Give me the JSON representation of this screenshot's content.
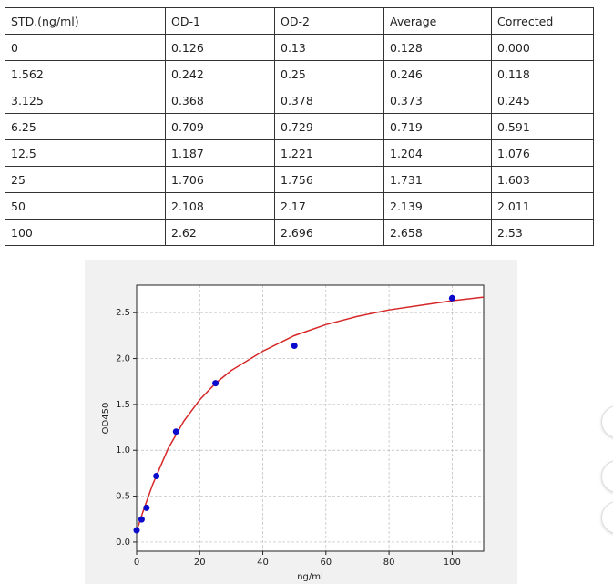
{
  "table": {
    "rows": [
      [
        "STD.(ng/ml)",
        "OD-1",
        "OD-2",
        "Average",
        "Corrected"
      ],
      [
        "0",
        "0.126",
        "0.13",
        "0.128",
        "0.000"
      ],
      [
        "1.562",
        "0.242",
        "0.25",
        "0.246",
        "0.118"
      ],
      [
        "3.125",
        "0.368",
        "0.378",
        "0.373",
        "0.245"
      ],
      [
        "6.25",
        "0.709",
        "0.729",
        "0.719",
        "0.591"
      ],
      [
        "12.5",
        "1.187",
        "1.221",
        "1.204",
        "1.076"
      ],
      [
        "25",
        "1.706",
        "1.756",
        "1.731",
        "1.603"
      ],
      [
        "50",
        "2.108",
        "2.17",
        "2.139",
        "2.011"
      ],
      [
        "100",
        "2.62",
        "2.696",
        "2.658",
        "2.53"
      ]
    ]
  },
  "chart_data": {
    "type": "scatter",
    "xlabel": "ng/ml",
    "ylabel": "OD450",
    "xlim": [
      0,
      110
    ],
    "ylim": [
      -0.1,
      2.8
    ],
    "xticks": [
      0,
      20,
      40,
      60,
      80,
      100
    ],
    "yticks": [
      {
        "value": 0,
        "label": "0.0"
      },
      {
        "value": 0.5,
        "label": "0.5"
      },
      {
        "value": 1,
        "label": "1.0"
      },
      {
        "value": 1.5,
        "label": "1.5"
      },
      {
        "value": 2,
        "label": "2.0"
      },
      {
        "value": 2.5,
        "label": "2.5"
      }
    ],
    "grid": true,
    "series": [
      {
        "color": "#0a0acc",
        "style": "points",
        "x": [
          0,
          1.562,
          3.125,
          6.25,
          12.5,
          25,
          50,
          100
        ],
        "values": [
          0.128,
          0.246,
          0.373,
          0.719,
          1.204,
          1.731,
          2.139,
          2.658
        ]
      },
      {
        "color": "#d62728",
        "style": "line",
        "x": [
          0,
          2,
          5,
          10,
          15,
          20,
          25,
          30,
          40,
          50,
          60,
          70,
          80,
          90,
          100,
          110
        ],
        "values": [
          0.12,
          0.33,
          0.62,
          1.02,
          1.32,
          1.55,
          1.73,
          1.87,
          2.08,
          2.25,
          2.37,
          2.46,
          2.53,
          2.58,
          2.63,
          2.67
        ]
      }
    ]
  }
}
